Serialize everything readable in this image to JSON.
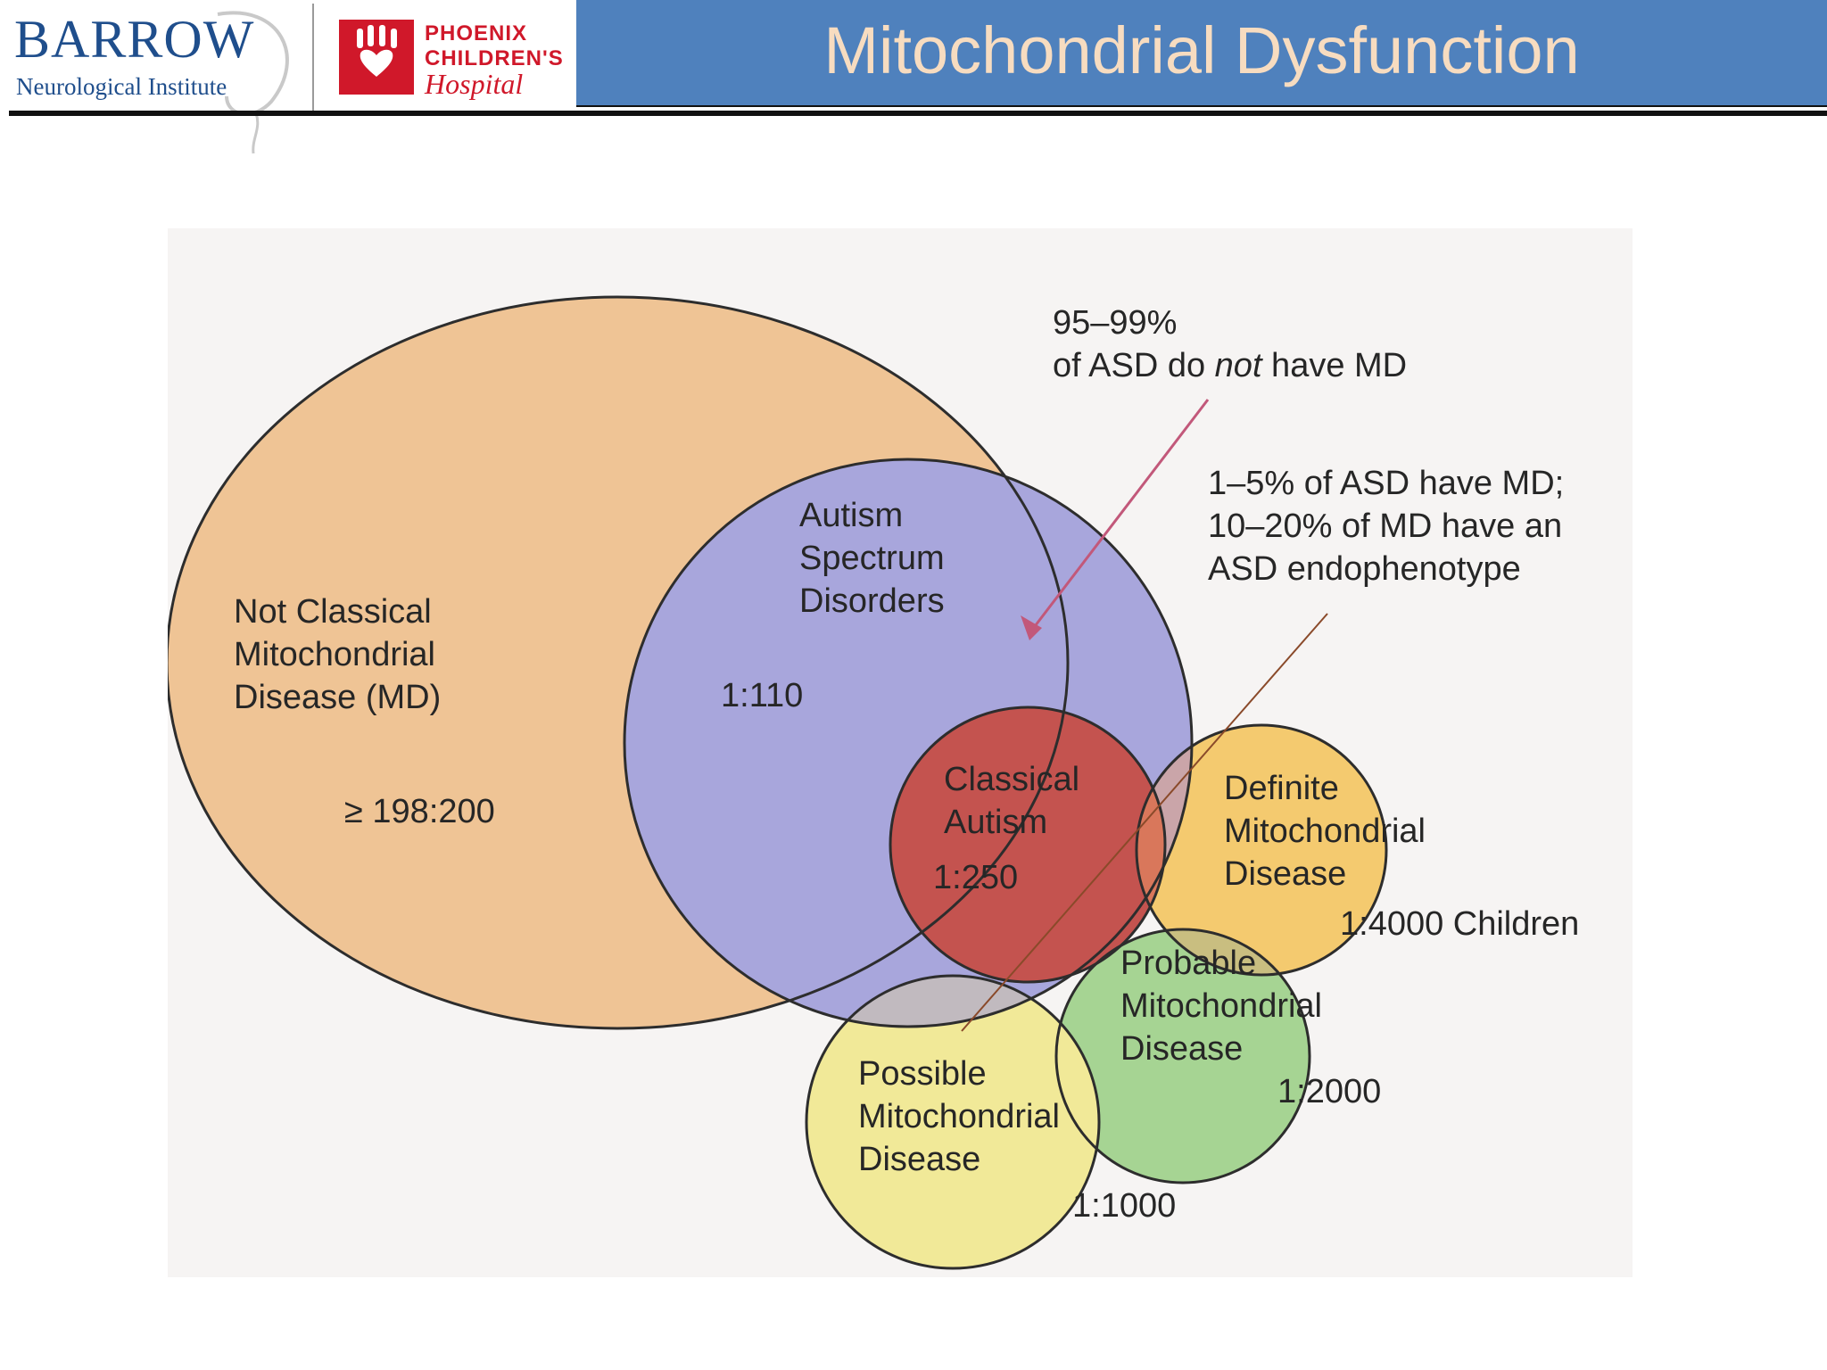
{
  "header": {
    "title": "Mitochondrial Dysfunction",
    "title_bar_color": "#4f81bd",
    "title_text_color": "#f7dcc0",
    "logos": {
      "barrow": {
        "name": "BARROW",
        "subtitle": "Neurological Institute"
      },
      "phoenix": {
        "line1": "PHOENIX",
        "line2": "CHILDREN'S",
        "line3": "Hospital"
      }
    }
  },
  "diagram": {
    "colors": {
      "not_classical": "#efc495",
      "asd": "#a8a6dc",
      "classical_autism": "#c4534f",
      "definite": "#f4ea73",
      "probable": "#a6d493",
      "possible": "#f2efa0",
      "arrow": "#c2587a"
    },
    "sets": {
      "not_classical": {
        "line1": "Not Classical",
        "line2": "Mitochondrial",
        "line3": "Disease (MD)",
        "ratio": "≥ 198:200"
      },
      "asd": {
        "line1": "Autism",
        "line2": "Spectrum",
        "line3": "Disorders",
        "ratio": "1:110"
      },
      "classical_autism": {
        "line1": "Classical",
        "line2": "Autism",
        "ratio": "1:250"
      },
      "definite": {
        "line1": "Definite",
        "line2": "Mitochondrial",
        "line3": "Disease",
        "ratio": "1:4000 Children"
      },
      "probable": {
        "line1": "Probable",
        "line2": "Mitochondrial",
        "line3": "Disease",
        "ratio": "1:2000"
      },
      "possible": {
        "line1": "Possible",
        "line2": "Mitochondrial",
        "line3": "Disease",
        "ratio": "1:1000"
      }
    },
    "annotations": {
      "top": {
        "line1": "95–99%",
        "line2_pre": "of ASD do ",
        "line2_em": "not",
        "line2_post": " have MD"
      },
      "right": {
        "line1": "1–5% of ASD have MD;",
        "line2": "10–20% of MD have an",
        "line3": "ASD endophenotype"
      }
    }
  }
}
